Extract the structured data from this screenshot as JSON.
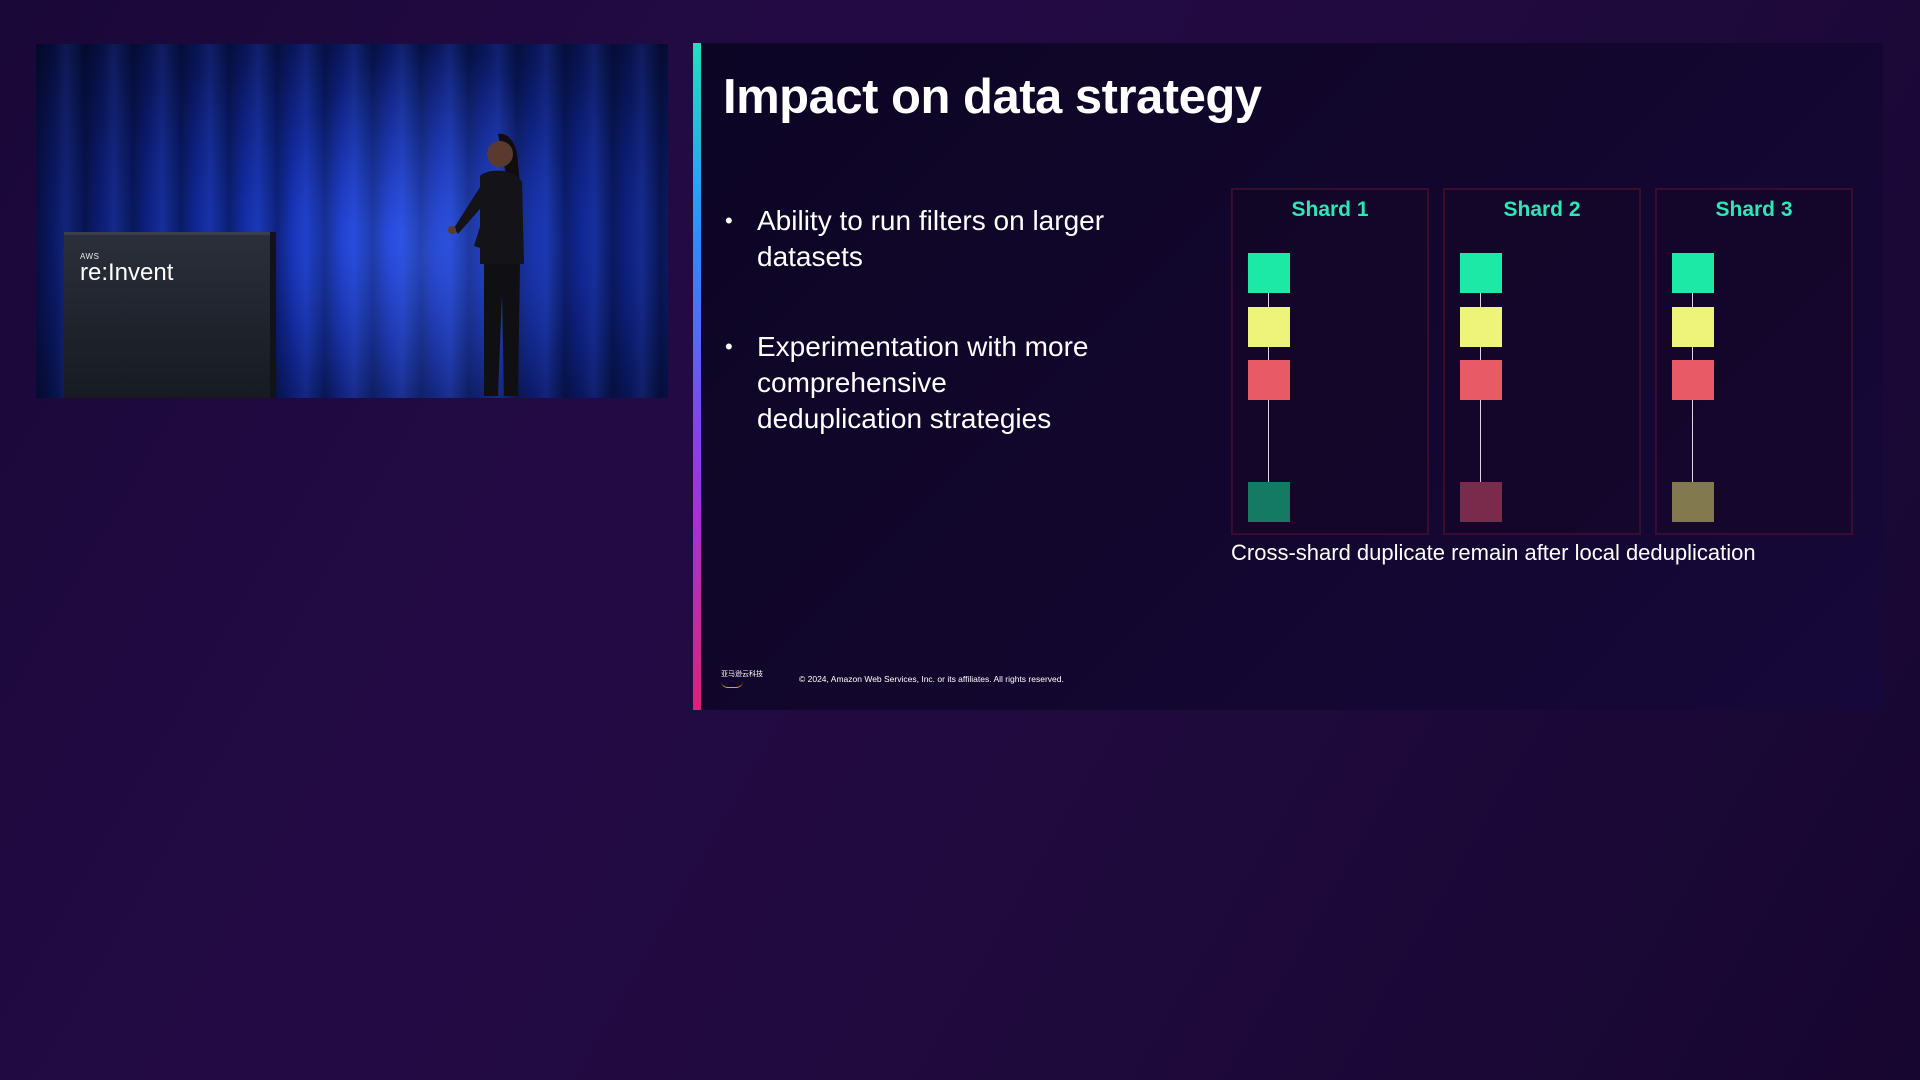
{
  "video": {
    "podium_logo_prefix": "AWS",
    "podium_logo_brand": "re:Invent"
  },
  "slide": {
    "title": "Impact on data strategy",
    "bullets": [
      "Ability to run filters on larger datasets",
      "Experimentation with more comprehensive deduplication strategies"
    ],
    "bullet_symbol": "•",
    "shards": [
      {
        "label": "Shard 1",
        "block_colors": [
          "#1de9a6",
          "#eef47a",
          "#e85b66",
          "#147a63"
        ]
      },
      {
        "label": "Shard 2",
        "block_colors": [
          "#1de9a6",
          "#eef47a",
          "#e85b66",
          "#7a2a4a"
        ]
      },
      {
        "label": "Shard 3",
        "block_colors": [
          "#1de9a6",
          "#eef47a",
          "#e85b66",
          "#82794f"
        ]
      }
    ],
    "caption": "Cross-shard duplicate remain after local deduplication",
    "footer_logo_text": "亚马逊云科技",
    "copyright": "© 2024, Amazon Web Services, Inc. or its affiliates. All rights reserved."
  },
  "colors": {
    "accent_teal": "#2ee6b8",
    "background": "#1f0a3c"
  }
}
